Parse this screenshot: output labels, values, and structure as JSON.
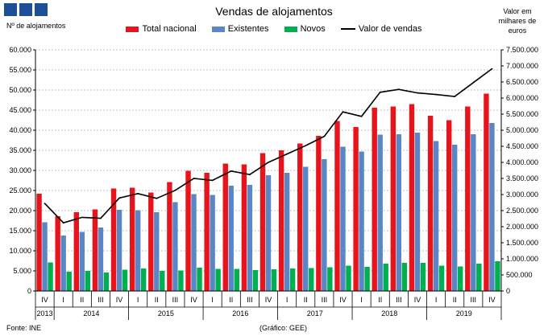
{
  "header": {
    "title": "Vendas de alojamentos",
    "left_axis_title": "Nº de alojamentos",
    "right_axis_title": "Valor em\nmilhares de\neuros"
  },
  "footer": {
    "source": "Fonte: INE",
    "credit": "(Gráfico: GEE)"
  },
  "colors": {
    "logo": "#1f4e99",
    "total": "#e8141c",
    "existentes": "#5b86c6",
    "novos": "#00b050",
    "valor": "#000000",
    "grid": "#b0b0b0"
  },
  "chart_data": {
    "type": "bar",
    "title": "Vendas de alojamentos",
    "ylabel": "Nº de alojamentos",
    "y2label": "Valor em milhares de euros",
    "ylim": [
      0,
      60000
    ],
    "y2lim": [
      0,
      7500000
    ],
    "y_ticks": [
      "0",
      "5.000",
      "10.000",
      "15.000",
      "20.000",
      "25.000",
      "30.000",
      "35.000",
      "40.000",
      "45.000",
      "50.000",
      "55.000",
      "60.000"
    ],
    "y2_ticks": [
      "0",
      "500.000",
      "1.000.000",
      "1.500.000",
      "2.000.000",
      "2.500.000",
      "3.000.000",
      "3.500.000",
      "4.000.000",
      "4.500.000",
      "5.000.000",
      "5.500.000",
      "6.000.000",
      "6.500.000",
      "7.000.000",
      "7.500.000"
    ],
    "grid": true,
    "legend_position": "top",
    "categories": [
      "IV",
      "I",
      "II",
      "III",
      "IV",
      "I",
      "II",
      "III",
      "IV",
      "I",
      "II",
      "III",
      "IV",
      "I",
      "II",
      "III",
      "IV",
      "I",
      "II",
      "III",
      "IV",
      "I",
      "II",
      "III",
      "IV"
    ],
    "years": [
      {
        "label": "2013",
        "quarters": 1
      },
      {
        "label": "2014",
        "quarters": 4
      },
      {
        "label": "2015",
        "quarters": 4
      },
      {
        "label": "2016",
        "quarters": 4
      },
      {
        "label": "2017",
        "quarters": 4
      },
      {
        "label": "2018",
        "quarters": 4
      },
      {
        "label": "2019",
        "quarters": 4
      }
    ],
    "series": [
      {
        "name": "Total nacional",
        "type": "bar",
        "axis": "left",
        "values": [
          24200,
          18600,
          19600,
          20300,
          25500,
          25700,
          24500,
          27100,
          29900,
          29400,
          31700,
          31500,
          34300,
          35000,
          36700,
          38600,
          42300,
          40800,
          45600,
          45900,
          46500,
          43600,
          42500,
          45900,
          49100
        ]
      },
      {
        "name": "Existentes",
        "type": "bar",
        "axis": "left",
        "values": [
          17100,
          13800,
          14700,
          15800,
          20200,
          20100,
          19600,
          22100,
          24100,
          23900,
          26200,
          26400,
          28800,
          29400,
          30900,
          32800,
          35900,
          34700,
          38900,
          39000,
          39400,
          37300,
          36400,
          39000,
          41800
        ]
      },
      {
        "name": "Novos",
        "type": "bar",
        "axis": "left",
        "values": [
          7100,
          4800,
          5000,
          4600,
          5300,
          5600,
          5000,
          5100,
          5800,
          5500,
          5500,
          5200,
          5400,
          5600,
          5700,
          5900,
          6300,
          6000,
          6800,
          7000,
          7000,
          6300,
          6100,
          6800,
          7400
        ]
      },
      {
        "name": "Valor de vendas",
        "type": "line",
        "axis": "right",
        "values": [
          2720000,
          2120000,
          2290000,
          2260000,
          2890000,
          3030000,
          2880000,
          3130000,
          3500000,
          3440000,
          3730000,
          3620000,
          4000000,
          4260000,
          4520000,
          4810000,
          5570000,
          5430000,
          6180000,
          6270000,
          6160000,
          6110000,
          6050000,
          6480000,
          6910000
        ]
      }
    ]
  }
}
